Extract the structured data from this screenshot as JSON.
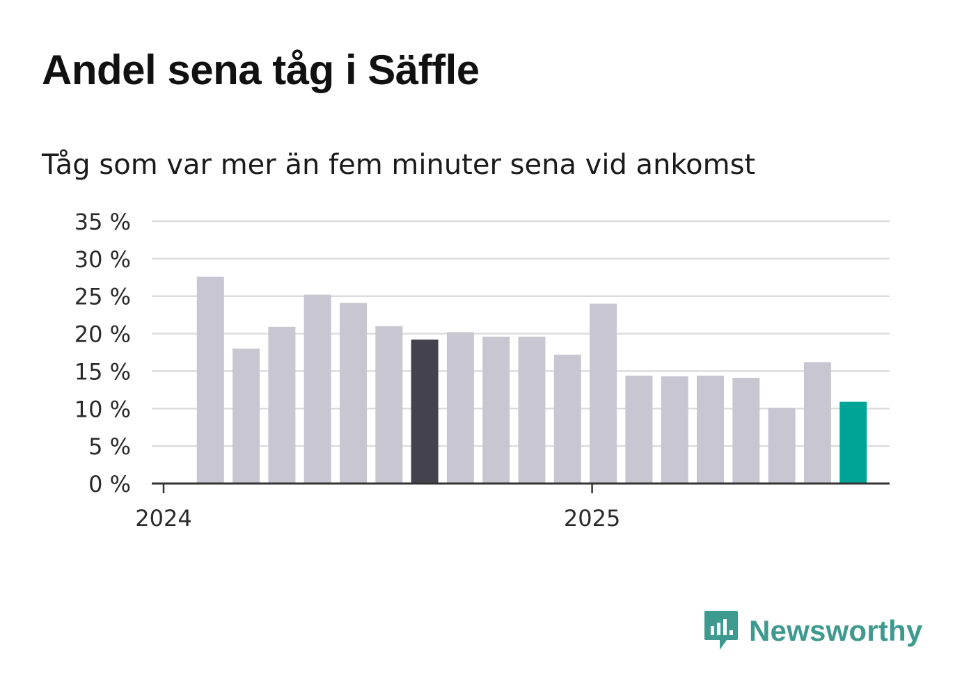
{
  "title": "Andel sena tåg i Säffle",
  "subtitle": "Tåg som var mer än fem minuter sena vid ankomst",
  "brand": {
    "name": "Newsworthy",
    "color": "#3e9a8f",
    "icon": "newsworthy-logo-icon"
  },
  "colors": {
    "bar": "#c8c7d1",
    "bar_highlight": "#43424d",
    "bar_latest": "#00a497",
    "grid": "#dcdcdc",
    "axis": "#333333"
  },
  "chart_data": {
    "type": "bar",
    "title": "Andel sena tåg i Säffle",
    "subtitle": "Tåg som var mer än fem minuter sena vid ankomst",
    "xlabel": "",
    "ylabel": "",
    "ylim": [
      0,
      35
    ],
    "y_ticks": [
      "0 %",
      "5 %",
      "10 %",
      "15 %",
      "20 %",
      "25 %",
      "30 %",
      "35 %"
    ],
    "x_ticks": [
      {
        "label": "2024",
        "at": "2024-01"
      },
      {
        "label": "2025",
        "at": "2025-01"
      }
    ],
    "grid": true,
    "categories": [
      "2024-02",
      "2024-03",
      "2024-04",
      "2024-05",
      "2024-06",
      "2024-07",
      "2024-08",
      "2024-09",
      "2024-10",
      "2024-11",
      "2024-12",
      "2025-01",
      "2025-02",
      "2025-03",
      "2025-04",
      "2025-05",
      "2025-06",
      "2025-07",
      "2025-08"
    ],
    "values": [
      27.6,
      18.0,
      20.9,
      25.2,
      24.1,
      21.0,
      19.2,
      20.2,
      19.6,
      19.6,
      17.2,
      24.0,
      14.4,
      14.3,
      14.4,
      14.1,
      10.1,
      16.2,
      10.9
    ],
    "highlight": {
      "2024-08": "bar_highlight",
      "2025-08": "bar_latest"
    }
  }
}
